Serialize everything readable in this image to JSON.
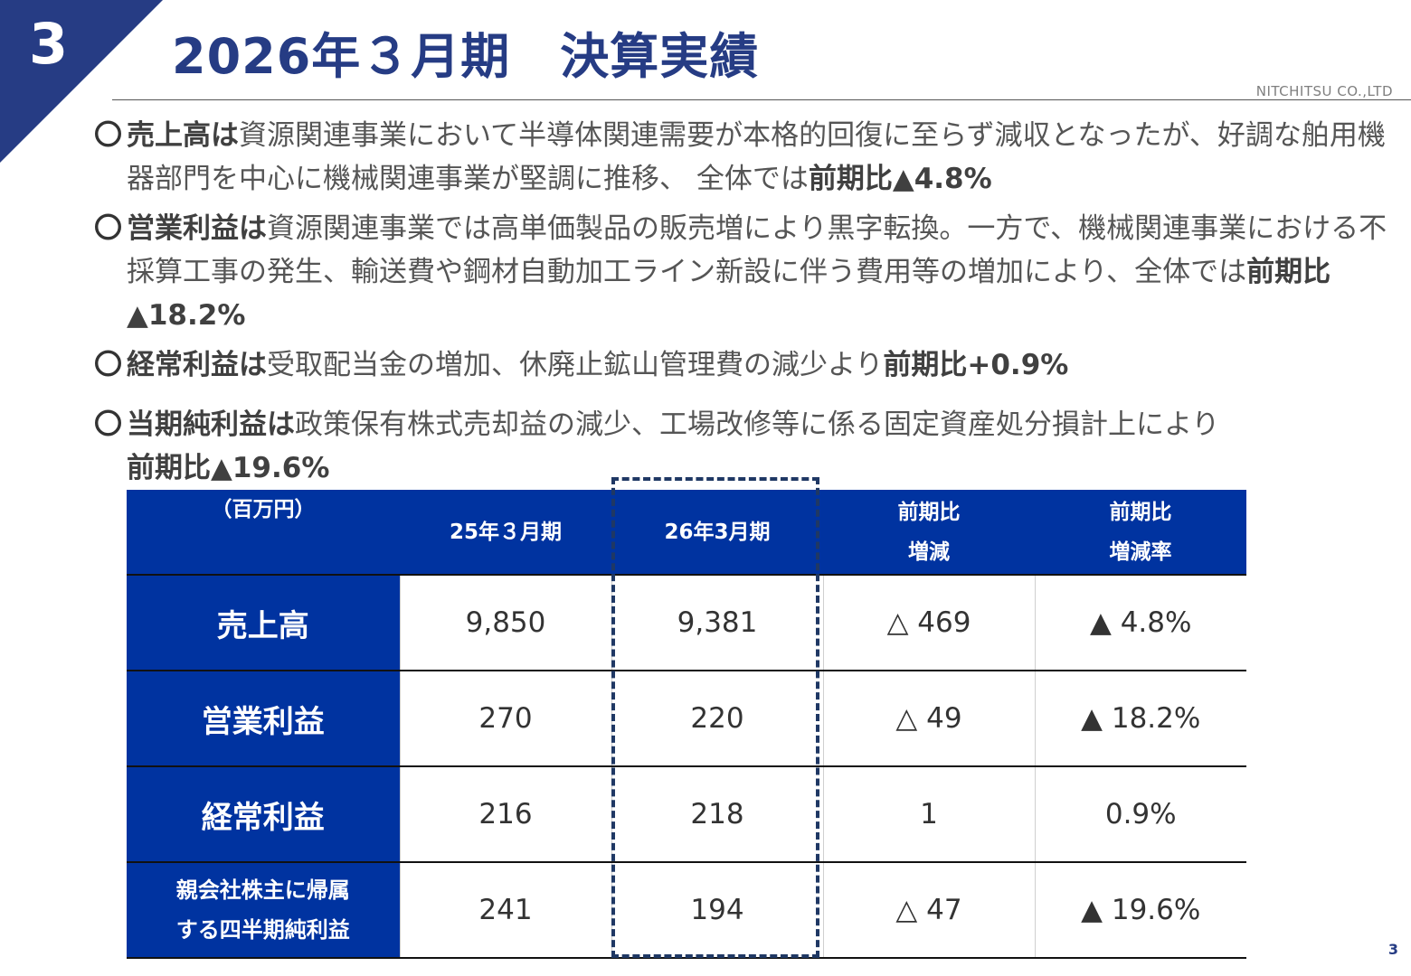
{
  "header": {
    "section_number": "3",
    "title": "2026年３月期　決算実績",
    "company": "NITCHITSU CO.,LTD"
  },
  "bullets": [
    {
      "marker": "〇",
      "lead": "売上高は",
      "text": "資源関連事業において半導体関連需要が本格的回復に至らず減収となったが、好調な舶用機器部門を中心に機械関連事業が堅調に推移、 全体では",
      "highlight": "前期比▲4.8%"
    },
    {
      "marker": "〇",
      "lead": "営業利益は",
      "text": "資源関連事業では高単価製品の販売増により黒字転換。一方で、機械関連事業における不採算工事の発生、輸送費や鋼材自動加工ライン新設に伴う費用等の増加により、全体では",
      "highlight": "前期比▲18.2%"
    },
    {
      "marker": "〇",
      "lead": "経常利益は",
      "text": "受取配当金の増加、休廃止鉱山管理費の減少より",
      "highlight": "前期比+0.9%"
    },
    {
      "marker": "〇",
      "lead": "当期純利益は",
      "text": "政策保有株式売却益の減少、工場改修等に係る固定資産処分損計上により",
      "highlight": "前期比▲19.6%"
    }
  ],
  "table": {
    "unit": "（百万円）",
    "headers": [
      "25年３月期",
      "26年3月期"
    ],
    "diff_header": [
      "前期比",
      "増減"
    ],
    "rate_header": [
      "前期比",
      "増減率"
    ],
    "rows": [
      {
        "label": "売上高",
        "prev": "9,850",
        "curr": "9,381",
        "diff": "△ 469",
        "rate": "▲ 4.8%"
      },
      {
        "label": "営業利益",
        "prev": "270",
        "curr": "220",
        "diff": "△ 49",
        "rate": "▲ 18.2%"
      },
      {
        "label": "経常利益",
        "prev": "216",
        "curr": "218",
        "diff": "1",
        "rate": "0.9%"
      },
      {
        "label_lines": [
          "親会社株主に帰属",
          "する四半期純利益"
        ],
        "prev": "241",
        "curr": "194",
        "diff": "△ 47",
        "rate": "▲ 19.6%"
      }
    ]
  },
  "footer": {
    "page_number": "3"
  },
  "colors": {
    "navy": "#263c84",
    "table_blue": "#0033a0",
    "dash": "#1f3864"
  }
}
